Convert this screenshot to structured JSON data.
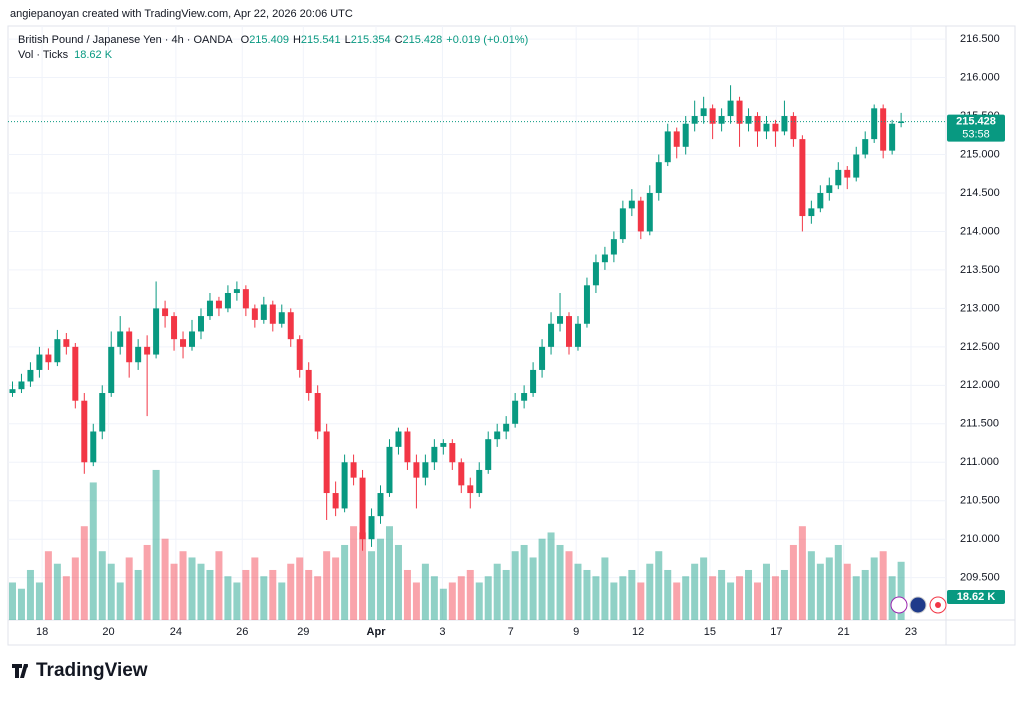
{
  "header": {
    "credit": "angiepanoyan created with TradingView.com, Apr 22, 2026 20:06 UTC",
    "logo": "TradingView"
  },
  "chart_data": {
    "type": "candlestick",
    "symbol": "British Pound / Japanese Yen · 4h · OANDA",
    "ohlc_prefixes": [
      "O",
      "H",
      "L",
      "C"
    ],
    "change": "+0.019 (+0.01%)",
    "volume_title": "Vol · Ticks",
    "volume_label": "18.62 K",
    "countdown": "53:58",
    "up_color": "#089981",
    "down_color": "#f23645",
    "grid": true,
    "xlim": [
      -0.5,
      104
    ],
    "xticks": [
      {
        "value": 3.3,
        "label": "18"
      },
      {
        "value": 10.7,
        "label": "20"
      },
      {
        "value": 18.2,
        "label": "24"
      },
      {
        "value": 25.6,
        "label": "26"
      },
      {
        "value": 32.4,
        "label": "29"
      },
      {
        "value": 40.5,
        "label": "Apr"
      },
      {
        "value": 47.9,
        "label": "3"
      },
      {
        "value": 55.5,
        "label": "7"
      },
      {
        "value": 62.8,
        "label": "9"
      },
      {
        "value": 69.7,
        "label": "12"
      },
      {
        "value": 77.7,
        "label": "15"
      },
      {
        "value": 85.1,
        "label": "17"
      },
      {
        "value": 92.6,
        "label": "21"
      },
      {
        "value": 100.1,
        "label": "23"
      }
    ],
    "ylim": [
      208.95,
      216.67
    ],
    "yticks": [
      {
        "value": 209.5,
        "label": "209.500"
      },
      {
        "value": 210,
        "label": "210.000"
      },
      {
        "value": 210.5,
        "label": "210.500"
      },
      {
        "value": 211,
        "label": "211.000"
      },
      {
        "value": 211.5,
        "label": "211.500"
      },
      {
        "value": 212,
        "label": "212.000"
      },
      {
        "value": 212.5,
        "label": "212.500"
      },
      {
        "value": 213,
        "label": "213.000"
      },
      {
        "value": 213.5,
        "label": "213.500"
      },
      {
        "value": 214,
        "label": "214.000"
      },
      {
        "value": 214.5,
        "label": "214.500"
      },
      {
        "value": 215,
        "label": "215.000"
      },
      {
        "value": 215.5,
        "label": "215.500"
      },
      {
        "value": 216,
        "label": "216.000"
      },
      {
        "value": 216.5,
        "label": "216.500"
      }
    ],
    "vlim": [
      0,
      190
    ],
    "candles": [
      [
        211.9,
        212.05,
        211.85,
        211.95
      ],
      [
        211.95,
        212.15,
        211.9,
        212.05
      ],
      [
        212.05,
        212.3,
        211.98,
        212.2
      ],
      [
        212.2,
        212.5,
        212.1,
        212.4
      ],
      [
        212.4,
        212.48,
        212.2,
        212.3
      ],
      [
        212.3,
        212.72,
        212.25,
        212.6
      ],
      [
        212.6,
        212.68,
        212.4,
        212.5
      ],
      [
        212.5,
        212.55,
        211.7,
        211.8
      ],
      [
        211.8,
        211.9,
        210.85,
        211.0
      ],
      [
        211.0,
        211.5,
        210.95,
        211.4
      ],
      [
        211.4,
        212.0,
        211.3,
        211.9
      ],
      [
        211.9,
        212.7,
        211.85,
        212.5
      ],
      [
        212.5,
        212.9,
        212.4,
        212.7
      ],
      [
        212.7,
        212.75,
        212.1,
        212.3
      ],
      [
        212.3,
        212.6,
        212.2,
        212.5
      ],
      [
        212.5,
        212.65,
        211.6,
        212.4
      ],
      [
        212.4,
        213.35,
        212.35,
        213.0
      ],
      [
        213.0,
        213.1,
        212.75,
        212.9
      ],
      [
        212.9,
        212.95,
        212.45,
        212.6
      ],
      [
        212.6,
        212.7,
        212.35,
        212.5
      ],
      [
        212.5,
        212.85,
        212.45,
        212.7
      ],
      [
        212.7,
        213.0,
        212.6,
        212.9
      ],
      [
        212.9,
        213.2,
        212.85,
        213.1
      ],
      [
        213.1,
        213.15,
        212.9,
        213.0
      ],
      [
        213.0,
        213.3,
        212.95,
        213.2
      ],
      [
        213.2,
        213.35,
        213.1,
        213.25
      ],
      [
        213.25,
        213.3,
        212.9,
        213.0
      ],
      [
        213.0,
        213.05,
        212.75,
        212.85
      ],
      [
        212.85,
        213.15,
        212.8,
        213.05
      ],
      [
        213.05,
        213.1,
        212.7,
        212.8
      ],
      [
        212.8,
        213.05,
        212.75,
        212.95
      ],
      [
        212.95,
        213.0,
        212.5,
        212.6
      ],
      [
        212.6,
        212.65,
        212.1,
        212.2
      ],
      [
        212.2,
        212.3,
        211.8,
        211.9
      ],
      [
        211.9,
        212.0,
        211.3,
        211.4
      ],
      [
        211.4,
        211.5,
        210.25,
        210.6
      ],
      [
        210.6,
        210.75,
        210.3,
        210.4
      ],
      [
        210.4,
        211.1,
        210.35,
        211.0
      ],
      [
        211.0,
        211.1,
        210.7,
        210.8
      ],
      [
        210.8,
        210.9,
        209.85,
        210.0
      ],
      [
        210.0,
        210.4,
        209.9,
        210.3
      ],
      [
        210.3,
        210.7,
        210.2,
        210.6
      ],
      [
        210.6,
        211.3,
        210.55,
        211.2
      ],
      [
        211.2,
        211.45,
        211.1,
        211.4
      ],
      [
        211.4,
        211.45,
        210.9,
        211.0
      ],
      [
        211.0,
        211.1,
        210.4,
        210.8
      ],
      [
        210.8,
        211.1,
        210.7,
        211.0
      ],
      [
        211.0,
        211.3,
        210.9,
        211.2
      ],
      [
        211.2,
        211.3,
        211.1,
        211.25
      ],
      [
        211.25,
        211.3,
        210.9,
        211.0
      ],
      [
        211.0,
        211.05,
        210.6,
        210.7
      ],
      [
        210.7,
        210.8,
        210.4,
        210.6
      ],
      [
        210.6,
        211.0,
        210.55,
        210.9
      ],
      [
        210.9,
        211.4,
        210.85,
        211.3
      ],
      [
        211.3,
        211.5,
        211.2,
        211.4
      ],
      [
        211.4,
        211.6,
        211.3,
        211.5
      ],
      [
        211.5,
        211.9,
        211.45,
        211.8
      ],
      [
        211.8,
        212.0,
        211.7,
        211.9
      ],
      [
        211.9,
        212.3,
        211.85,
        212.2
      ],
      [
        212.2,
        212.6,
        212.1,
        212.5
      ],
      [
        212.5,
        212.95,
        212.4,
        212.8
      ],
      [
        212.8,
        213.2,
        212.7,
        212.9
      ],
      [
        212.9,
        212.95,
        212.4,
        212.5
      ],
      [
        212.5,
        212.9,
        212.45,
        212.8
      ],
      [
        212.8,
        213.4,
        212.75,
        213.3
      ],
      [
        213.3,
        213.7,
        213.2,
        213.6
      ],
      [
        213.6,
        213.8,
        213.5,
        213.7
      ],
      [
        213.7,
        214.0,
        213.6,
        213.9
      ],
      [
        213.9,
        214.4,
        213.85,
        214.3
      ],
      [
        214.3,
        214.55,
        214.2,
        214.4
      ],
      [
        214.4,
        214.45,
        213.9,
        214.0
      ],
      [
        214.0,
        214.6,
        213.95,
        214.5
      ],
      [
        214.5,
        215.0,
        214.4,
        214.9
      ],
      [
        214.9,
        215.4,
        214.85,
        215.3
      ],
      [
        215.3,
        215.35,
        214.95,
        215.1
      ],
      [
        215.1,
        215.5,
        215.0,
        215.4
      ],
      [
        215.4,
        215.7,
        215.3,
        215.5
      ],
      [
        215.5,
        215.75,
        215.4,
        215.6
      ],
      [
        215.6,
        215.65,
        215.2,
        215.4
      ],
      [
        215.4,
        215.6,
        215.3,
        215.5
      ],
      [
        215.5,
        215.9,
        215.4,
        215.7
      ],
      [
        215.7,
        215.75,
        215.1,
        215.4
      ],
      [
        215.4,
        215.6,
        215.3,
        215.5
      ],
      [
        215.5,
        215.55,
        215.1,
        215.3
      ],
      [
        215.3,
        215.5,
        215.2,
        215.4
      ],
      [
        215.4,
        215.45,
        215.1,
        215.3
      ],
      [
        215.3,
        215.7,
        215.25,
        215.5
      ],
      [
        215.5,
        215.55,
        215.1,
        215.2
      ],
      [
        215.2,
        215.25,
        214.0,
        214.2
      ],
      [
        214.2,
        214.4,
        214.1,
        214.3
      ],
      [
        214.3,
        214.6,
        214.25,
        214.5
      ],
      [
        214.5,
        214.7,
        214.4,
        214.6
      ],
      [
        214.6,
        214.9,
        214.55,
        214.8
      ],
      [
        214.8,
        214.85,
        214.55,
        214.7
      ],
      [
        214.7,
        215.1,
        214.65,
        215.0
      ],
      [
        215.0,
        215.3,
        214.95,
        215.2
      ],
      [
        215.2,
        215.65,
        215.15,
        215.6
      ],
      [
        215.6,
        215.65,
        214.95,
        215.05
      ],
      [
        215.05,
        215.45,
        215.0,
        215.4
      ],
      [
        215.409,
        215.541,
        215.354,
        215.428
      ]
    ],
    "volume": [
      12,
      10,
      16,
      12,
      22,
      18,
      14,
      20,
      30,
      44,
      22,
      18,
      12,
      20,
      16,
      24,
      48,
      26,
      18,
      22,
      20,
      18,
      16,
      22,
      14,
      12,
      16,
      20,
      14,
      16,
      12,
      18,
      20,
      16,
      14,
      22,
      20,
      24,
      30,
      28,
      22,
      26,
      30,
      24,
      16,
      12,
      18,
      14,
      10,
      12,
      14,
      16,
      12,
      14,
      18,
      16,
      22,
      24,
      20,
      26,
      28,
      24,
      22,
      18,
      16,
      14,
      20,
      12,
      14,
      16,
      12,
      18,
      22,
      16,
      12,
      14,
      18,
      20,
      14,
      16,
      12,
      14,
      16,
      12,
      18,
      14,
      16,
      24,
      30,
      22,
      18,
      20,
      24,
      18,
      14,
      16,
      20,
      22,
      14,
      18.62
    ]
  }
}
